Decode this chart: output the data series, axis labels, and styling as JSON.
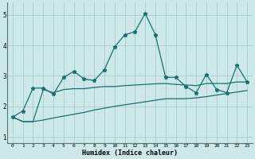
{
  "xlabel": "Humidex (Indice chaleur)",
  "xlim": [
    -0.5,
    23.5
  ],
  "ylim": [
    0.8,
    5.4
  ],
  "background_color": "#cce8e8",
  "grid_color": "#aacccc",
  "line_color": "#1a7070",
  "x_ticks": [
    0,
    1,
    2,
    3,
    4,
    5,
    6,
    7,
    8,
    9,
    10,
    11,
    12,
    13,
    14,
    15,
    16,
    17,
    18,
    19,
    20,
    21,
    22,
    23
  ],
  "y_ticks": [
    1,
    2,
    3,
    4,
    5
  ],
  "line1_x": [
    0,
    1,
    2,
    3,
    4,
    5,
    6,
    7,
    8,
    9,
    10,
    11,
    12,
    13,
    14,
    15,
    16,
    17,
    18,
    19,
    20,
    21,
    22,
    23
  ],
  "line1_y": [
    1.65,
    1.85,
    2.6,
    2.6,
    2.4,
    2.95,
    3.15,
    2.9,
    2.85,
    3.2,
    3.95,
    4.35,
    4.45,
    5.05,
    4.35,
    2.95,
    2.95,
    2.65,
    2.45,
    3.05,
    2.55,
    2.45,
    3.35,
    2.8
  ],
  "line2_x": [
    0,
    1,
    2,
    3,
    4,
    5,
    6,
    7,
    8,
    9,
    10,
    11,
    12,
    13,
    14,
    15,
    16,
    17,
    18,
    19,
    20,
    21,
    22,
    23
  ],
  "line2_y": [
    1.65,
    1.5,
    1.5,
    2.55,
    2.45,
    2.55,
    2.58,
    2.58,
    2.62,
    2.65,
    2.65,
    2.68,
    2.7,
    2.72,
    2.74,
    2.75,
    2.72,
    2.7,
    2.68,
    2.75,
    2.75,
    2.75,
    2.8,
    2.8
  ],
  "line3_x": [
    0,
    1,
    2,
    3,
    4,
    5,
    6,
    7,
    8,
    9,
    10,
    11,
    12,
    13,
    14,
    15,
    16,
    17,
    18,
    19,
    20,
    21,
    22,
    23
  ],
  "line3_y": [
    1.65,
    1.5,
    1.5,
    1.55,
    1.62,
    1.68,
    1.74,
    1.8,
    1.88,
    1.94,
    2.0,
    2.05,
    2.1,
    2.15,
    2.2,
    2.25,
    2.25,
    2.25,
    2.28,
    2.32,
    2.37,
    2.42,
    2.47,
    2.52
  ]
}
